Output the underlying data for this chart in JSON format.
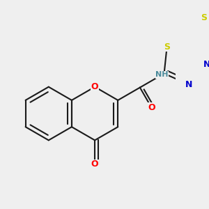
{
  "bg_color": "#efefef",
  "bond_color": "#1a1a1a",
  "bond_width": 1.5,
  "atom_colors": {
    "O": "#ff0000",
    "N": "#0000cd",
    "S": "#cccc00",
    "H": "#4a8a9a",
    "C": "#1a1a1a"
  },
  "font_size": 9
}
